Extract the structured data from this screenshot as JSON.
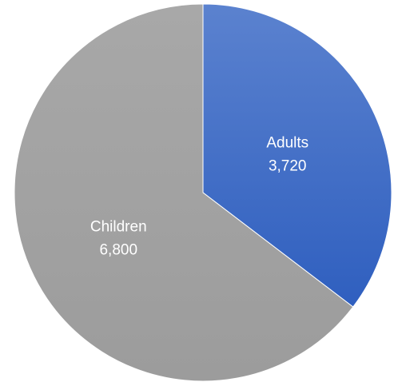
{
  "chart_data": {
    "type": "pie",
    "title": "",
    "start": "12 o'clock",
    "direction": "clockwise",
    "slices": [
      {
        "label": "Adults",
        "value": 3720,
        "value_label": "3,720",
        "color": "#4472C4"
      },
      {
        "label": "Children",
        "value": 6800,
        "value_label": "6,800",
        "color": "#A5A5A5"
      }
    ],
    "data_labels": "inside, white, category and value"
  }
}
